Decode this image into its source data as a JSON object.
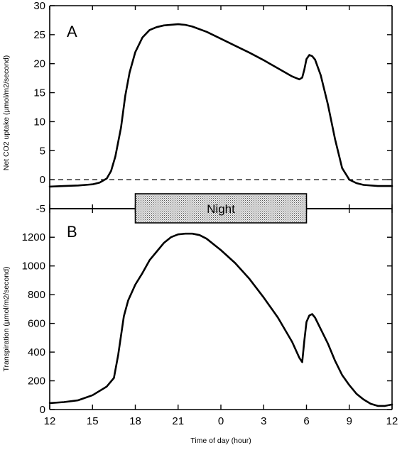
{
  "chart_data": [
    {
      "type": "line",
      "panel_label": "A",
      "ylabel": "Net CO2 uptake (µmol/m2/second)",
      "ylim": [
        -5,
        30
      ],
      "yticks": [
        -5,
        0,
        5,
        10,
        15,
        20,
        25,
        30
      ],
      "reference_line": {
        "y": 0,
        "style": "dashed"
      },
      "series": [
        {
          "x": [
            12,
            13,
            14,
            15,
            15.5,
            16,
            16.3,
            16.6,
            17,
            17.3,
            17.6,
            18,
            18.5,
            19,
            19.5,
            20,
            21,
            21.5,
            22,
            23,
            24,
            25,
            26,
            27,
            28,
            29,
            29.5,
            29.7,
            29.85,
            30,
            30.2,
            30.4,
            30.6,
            31,
            31.5,
            32,
            32.5,
            33,
            33.5,
            34,
            35,
            36
          ],
          "y": [
            -1.2,
            -1.1,
            -1,
            -0.8,
            -0.5,
            0.2,
            1.5,
            4,
            9,
            14.5,
            18.5,
            22,
            24.5,
            25.8,
            26.3,
            26.6,
            26.8,
            26.7,
            26.4,
            25.5,
            24.3,
            23.1,
            21.9,
            20.6,
            19.2,
            17.8,
            17.3,
            17.6,
            19,
            20.8,
            21.5,
            21.3,
            20.7,
            18,
            13,
            7,
            2,
            0,
            -0.6,
            -0.9,
            -1.1,
            -1.1
          ]
        }
      ]
    },
    {
      "type": "line",
      "panel_label": "B",
      "ylabel": "Transpiration (µmol/m2/second)",
      "ylim": [
        0,
        1300
      ],
      "yticks": [
        0,
        200,
        400,
        600,
        800,
        1000,
        1200
      ],
      "series": [
        {
          "x": [
            12,
            13,
            14,
            15,
            16,
            16.5,
            16.8,
            17.2,
            17.5,
            18,
            18.5,
            19,
            19.5,
            20,
            20.5,
            21,
            21.5,
            22,
            22.5,
            23,
            24,
            25,
            26,
            27,
            28,
            29,
            29.5,
            29.7,
            29.85,
            30,
            30.2,
            30.4,
            30.6,
            31,
            31.5,
            32,
            32.5,
            33,
            33.5,
            34,
            34.5,
            35,
            35.5,
            36
          ],
          "y": [
            45,
            52,
            65,
            100,
            160,
            220,
            380,
            650,
            760,
            870,
            950,
            1040,
            1100,
            1160,
            1200,
            1220,
            1225,
            1225,
            1215,
            1190,
            1110,
            1020,
            910,
            780,
            640,
            470,
            360,
            330,
            480,
            610,
            655,
            665,
            640,
            560,
            460,
            340,
            240,
            170,
            110,
            70,
            40,
            25,
            25,
            35
          ]
        }
      ]
    }
  ],
  "x_axis": {
    "label": "Time of day (hour)",
    "range": [
      12,
      36
    ],
    "ticks": [
      12,
      15,
      18,
      21,
      24,
      27,
      30,
      33,
      36
    ],
    "tick_labels": [
      "12",
      "15",
      "18",
      "21",
      "0",
      "3",
      "6",
      "9",
      "12"
    ]
  },
  "night_band": {
    "label": "Night",
    "start": 18,
    "end": 30
  }
}
